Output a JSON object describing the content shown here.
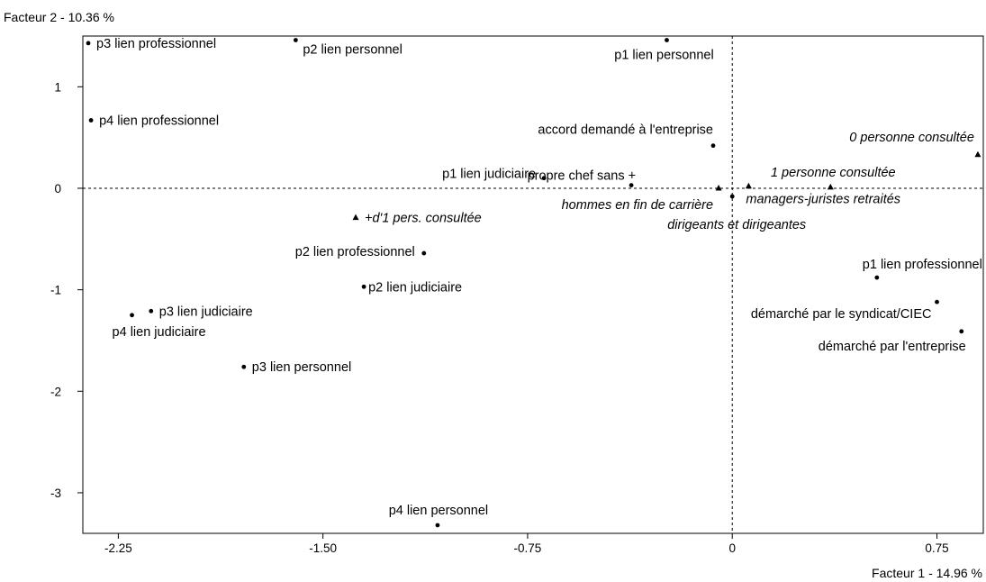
{
  "chart_data": {
    "type": "scatter",
    "title": "",
    "xlabel": "Facteur 1  -  14.96 %",
    "ylabel": "Facteur 2  -  10.36 %",
    "xlim": [
      -2.38,
      0.92
    ],
    "ylim": [
      -3.4,
      1.5
    ],
    "xticks": [
      {
        "value": -2.25,
        "label": "-2.25"
      },
      {
        "value": -1.5,
        "label": "-1.50"
      },
      {
        "value": -0.75,
        "label": "-0.75"
      },
      {
        "value": 0,
        "label": "0"
      },
      {
        "value": 0.75,
        "label": "0.75"
      }
    ],
    "yticks": [
      {
        "value": 1,
        "label": "1"
      },
      {
        "value": 0,
        "label": "0"
      },
      {
        "value": -1,
        "label": "-1"
      },
      {
        "value": -2,
        "label": "-2"
      },
      {
        "value": -3,
        "label": "-3"
      }
    ],
    "reference_lines": {
      "x": 0,
      "y": 0,
      "style": "dashed"
    },
    "grid": false,
    "legend": "none",
    "points": [
      {
        "label": "p3 lien professionnel",
        "x": -2.36,
        "y": 1.43,
        "marker": "dot",
        "italic": false
      },
      {
        "label": "p2 lien personnel",
        "x": -1.6,
        "y": 1.46,
        "marker": "dot",
        "italic": false
      },
      {
        "label": "p1 lien personnel",
        "x": -0.24,
        "y": 1.46,
        "marker": "dot",
        "italic": false
      },
      {
        "label": "p4 lien professionnel",
        "x": -2.35,
        "y": 0.67,
        "marker": "dot",
        "italic": false
      },
      {
        "label": "accord demandé à l'entreprise",
        "x": -0.07,
        "y": 0.42,
        "marker": "dot",
        "italic": false
      },
      {
        "label": "0 personne consultée",
        "x": 0.9,
        "y": 0.33,
        "marker": "triangle",
        "italic": true
      },
      {
        "label": "p1 lien judiciaire",
        "x": -0.69,
        "y": 0.1,
        "marker": "dot",
        "italic": false
      },
      {
        "label": "propre chef sans +",
        "x": -0.37,
        "y": 0.03,
        "marker": "dot",
        "italic": false
      },
      {
        "label": "1 personne consultée",
        "x": 0.36,
        "y": 0.01,
        "marker": "triangle",
        "italic": true
      },
      {
        "label": "hommes en fin de carrière",
        "x": -0.05,
        "y": 0.0,
        "marker": "triangle",
        "italic": true
      },
      {
        "label": "managers-juristes retraités",
        "x": 0.06,
        "y": 0.02,
        "marker": "triangle",
        "italic": true
      },
      {
        "label": "dirigeants et dirigeantes",
        "x": 0.0,
        "y": -0.08,
        "marker": "dot",
        "italic": true
      },
      {
        "label": "+d'1 pers. consultée",
        "x": -1.38,
        "y": -0.29,
        "marker": "triangle",
        "italic": true
      },
      {
        "label": "p2 lien professionnel",
        "x": -1.13,
        "y": -0.64,
        "marker": "dot",
        "italic": false
      },
      {
        "label": "p1 lien professionnel",
        "x": 0.53,
        "y": -0.88,
        "marker": "dot",
        "italic": false
      },
      {
        "label": "p2 lien judiciaire",
        "x": -1.35,
        "y": -0.97,
        "marker": "dot",
        "italic": false
      },
      {
        "label": "démarché par le syndicat/CIEC",
        "x": 0.75,
        "y": -1.12,
        "marker": "dot",
        "italic": false
      },
      {
        "label": "p3 lien judiciaire",
        "x": -2.13,
        "y": -1.21,
        "marker": "dot",
        "italic": false
      },
      {
        "label": "p4 lien judiciaire",
        "x": -2.2,
        "y": -1.25,
        "marker": "dot",
        "italic": false
      },
      {
        "label": "démarché par l'entreprise",
        "x": 0.84,
        "y": -1.41,
        "marker": "dot",
        "italic": false
      },
      {
        "label": "p3 lien personnel",
        "x": -1.79,
        "y": -1.76,
        "marker": "dot",
        "italic": false
      },
      {
        "label": "p4 lien personnel",
        "x": -1.08,
        "y": -3.32,
        "marker": "dot",
        "italic": false
      }
    ]
  }
}
